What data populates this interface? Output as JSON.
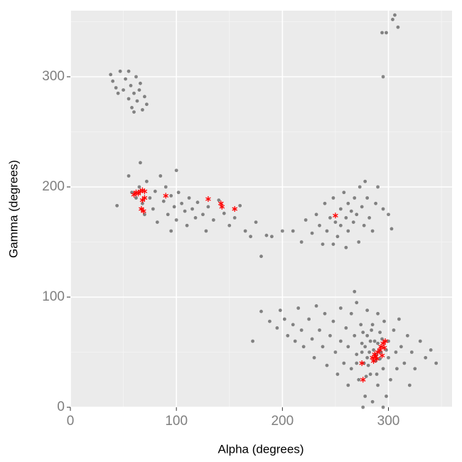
{
  "chart_data": {
    "type": "scatter",
    "x_label": "Alpha (degrees)",
    "y_label": "Gamma (degrees)",
    "xlim": [
      0,
      360
    ],
    "ylim": [
      0,
      360
    ],
    "xticks": [
      0,
      100,
      200,
      300
    ],
    "yticks": [
      0,
      100,
      200,
      300
    ],
    "x_minor_ticks": [
      50,
      150,
      250,
      350
    ],
    "y_minor_ticks": [
      50,
      150,
      250,
      350
    ],
    "grid": true,
    "series": [
      {
        "color": "#000000",
        "marker": "circle",
        "opacity": 0.45,
        "x": [
          38,
          40,
          43,
          47,
          50,
          52,
          55,
          57,
          58,
          60,
          62,
          63,
          65,
          68,
          70,
          72,
          45,
          55,
          66,
          60,
          44,
          55,
          58,
          62,
          65,
          66,
          68,
          70,
          72,
          75,
          78,
          80,
          82,
          85,
          88,
          90,
          92,
          95,
          98,
          100,
          102,
          105,
          108,
          110,
          112,
          115,
          118,
          120,
          125,
          128,
          130,
          135,
          140,
          145,
          150,
          155,
          160,
          165,
          170,
          175,
          180,
          185,
          100,
          95,
          190,
          200,
          210,
          218,
          222,
          228,
          232,
          235,
          238,
          240,
          242,
          245,
          248,
          250,
          252,
          255,
          255,
          258,
          260,
          262,
          262,
          265,
          267,
          268,
          270,
          272,
          273,
          275,
          277,
          280,
          282,
          285,
          288,
          290,
          295,
          300,
          303,
          260,
          248,
          278,
          180,
          188,
          195,
          198,
          202,
          205,
          210,
          212,
          215,
          218,
          220,
          225,
          228,
          230,
          232,
          235,
          238,
          240,
          242,
          245,
          248,
          250,
          252,
          255,
          255,
          258,
          260,
          262,
          262,
          265,
          265,
          268,
          270,
          270,
          272,
          274,
          275,
          277,
          278,
          280,
          280,
          282,
          283,
          285,
          285,
          287,
          288,
          290,
          290,
          292,
          293,
          295,
          296,
          298,
          300,
          300,
          302,
          305,
          307,
          308,
          310,
          312,
          315,
          318,
          320,
          322,
          325,
          330,
          335,
          340,
          345,
          268,
          276,
          295,
          172,
          275,
          278,
          280,
          283,
          286,
          288,
          290,
          292,
          281,
          276,
          294,
          284,
          270,
          298,
          279,
          289,
          295,
          294,
          298,
          304,
          306,
          309
        ],
        "values": [
          302,
          296,
          290,
          305,
          288,
          298,
          280,
          292,
          272,
          285,
          300,
          278,
          288,
          270,
          282,
          275,
          285,
          305,
          294,
          268,
          183,
          210,
          195,
          190,
          200,
          222,
          185,
          175,
          205,
          190,
          180,
          196,
          168,
          210,
          187,
          200,
          175,
          192,
          182,
          170,
          195,
          185,
          178,
          165,
          190,
          180,
          172,
          186,
          175,
          160,
          182,
          170,
          188,
          176,
          165,
          172,
          183,
          160,
          155,
          168,
          137,
          156,
          215,
          160,
          155,
          160,
          160,
          150,
          170,
          158,
          175,
          165,
          148,
          185,
          160,
          172,
          190,
          168,
          155,
          180,
          165,
          195,
          172,
          185,
          160,
          178,
          168,
          190,
          175,
          150,
          200,
          182,
          165,
          190,
          172,
          160,
          185,
          200,
          180,
          175,
          162,
          145,
          148,
          205,
          87,
          78,
          72,
          88,
          80,
          65,
          75,
          60,
          90,
          70,
          55,
          80,
          62,
          45,
          92,
          70,
          55,
          85,
          38,
          65,
          78,
          50,
          30,
          90,
          60,
          40,
          72,
          55,
          20,
          85,
          35,
          65,
          48,
          95,
          25,
          75,
          58,
          40,
          10,
          88,
          65,
          50,
          30,
          75,
          5,
          60,
          42,
          85,
          20,
          68,
          50,
          35,
          78,
          10,
          60,
          45,
          25,
          70,
          50,
          35,
          80,
          55,
          40,
          65,
          20,
          50,
          35,
          60,
          45,
          52,
          40,
          105,
          0,
          0,
          60,
          50,
          55,
          45,
          60,
          52,
          48,
          58,
          44,
          38,
          68,
          62,
          70,
          40,
          52,
          28,
          30,
          300,
          340,
          340,
          352,
          356,
          345
        ]
      },
      {
        "color": "#ff0000",
        "marker": "asterisk",
        "opacity": 1,
        "x": [
          60,
          62,
          64,
          66,
          68,
          70,
          68,
          70,
          67,
          69,
          90,
          130,
          142,
          143,
          155,
          250,
          275,
          276,
          285,
          287,
          289,
          290,
          292,
          293,
          295,
          296,
          297,
          294,
          286,
          288
        ],
        "values": [
          193,
          195,
          194,
          196,
          197,
          196,
          188,
          190,
          180,
          178,
          192,
          189,
          185,
          182,
          180,
          174,
          40,
          25,
          45,
          48,
          44,
          50,
          52,
          55,
          58,
          54,
          60,
          47,
          42,
          46
        ]
      }
    ]
  }
}
